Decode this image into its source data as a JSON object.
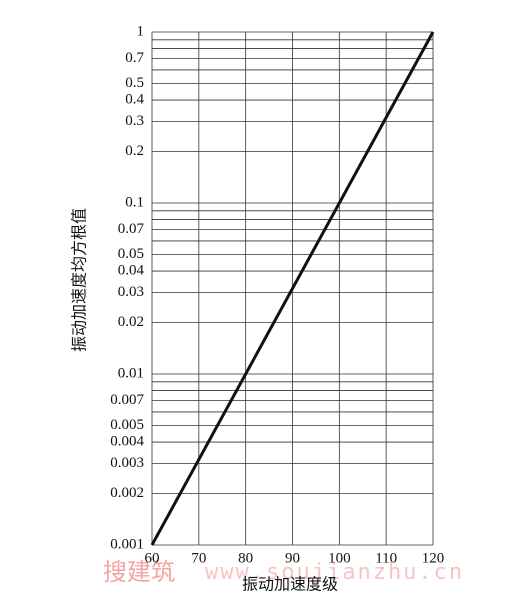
{
  "chart_data": {
    "type": "line",
    "x_label": "振动加速度级",
    "y_label": "振动加速度均方根值",
    "x": [
      60,
      120
    ],
    "series": [
      {
        "color": "#111111",
        "values": [
          0.001,
          1
        ]
      }
    ],
    "xlim": [
      60,
      120
    ],
    "xticks": [
      60,
      70,
      80,
      90,
      100,
      110,
      120
    ],
    "ylim": [
      0.001,
      1
    ],
    "ylog": true,
    "yticks": [
      0.001,
      0.002,
      0.003,
      0.004,
      0.005,
      0.007,
      0.01,
      0.02,
      0.03,
      0.04,
      0.05,
      0.07,
      0.1,
      0.2,
      0.3,
      0.4,
      0.5,
      0.7,
      1
    ],
    "y_minor_gridlines": [
      0.006,
      0.008,
      0.009,
      0.06,
      0.08,
      0.09,
      0.6,
      0.8,
      0.9
    ],
    "grid": true,
    "watermark": [
      "搜建筑",
      "www.soujianzhu.cn"
    ]
  }
}
